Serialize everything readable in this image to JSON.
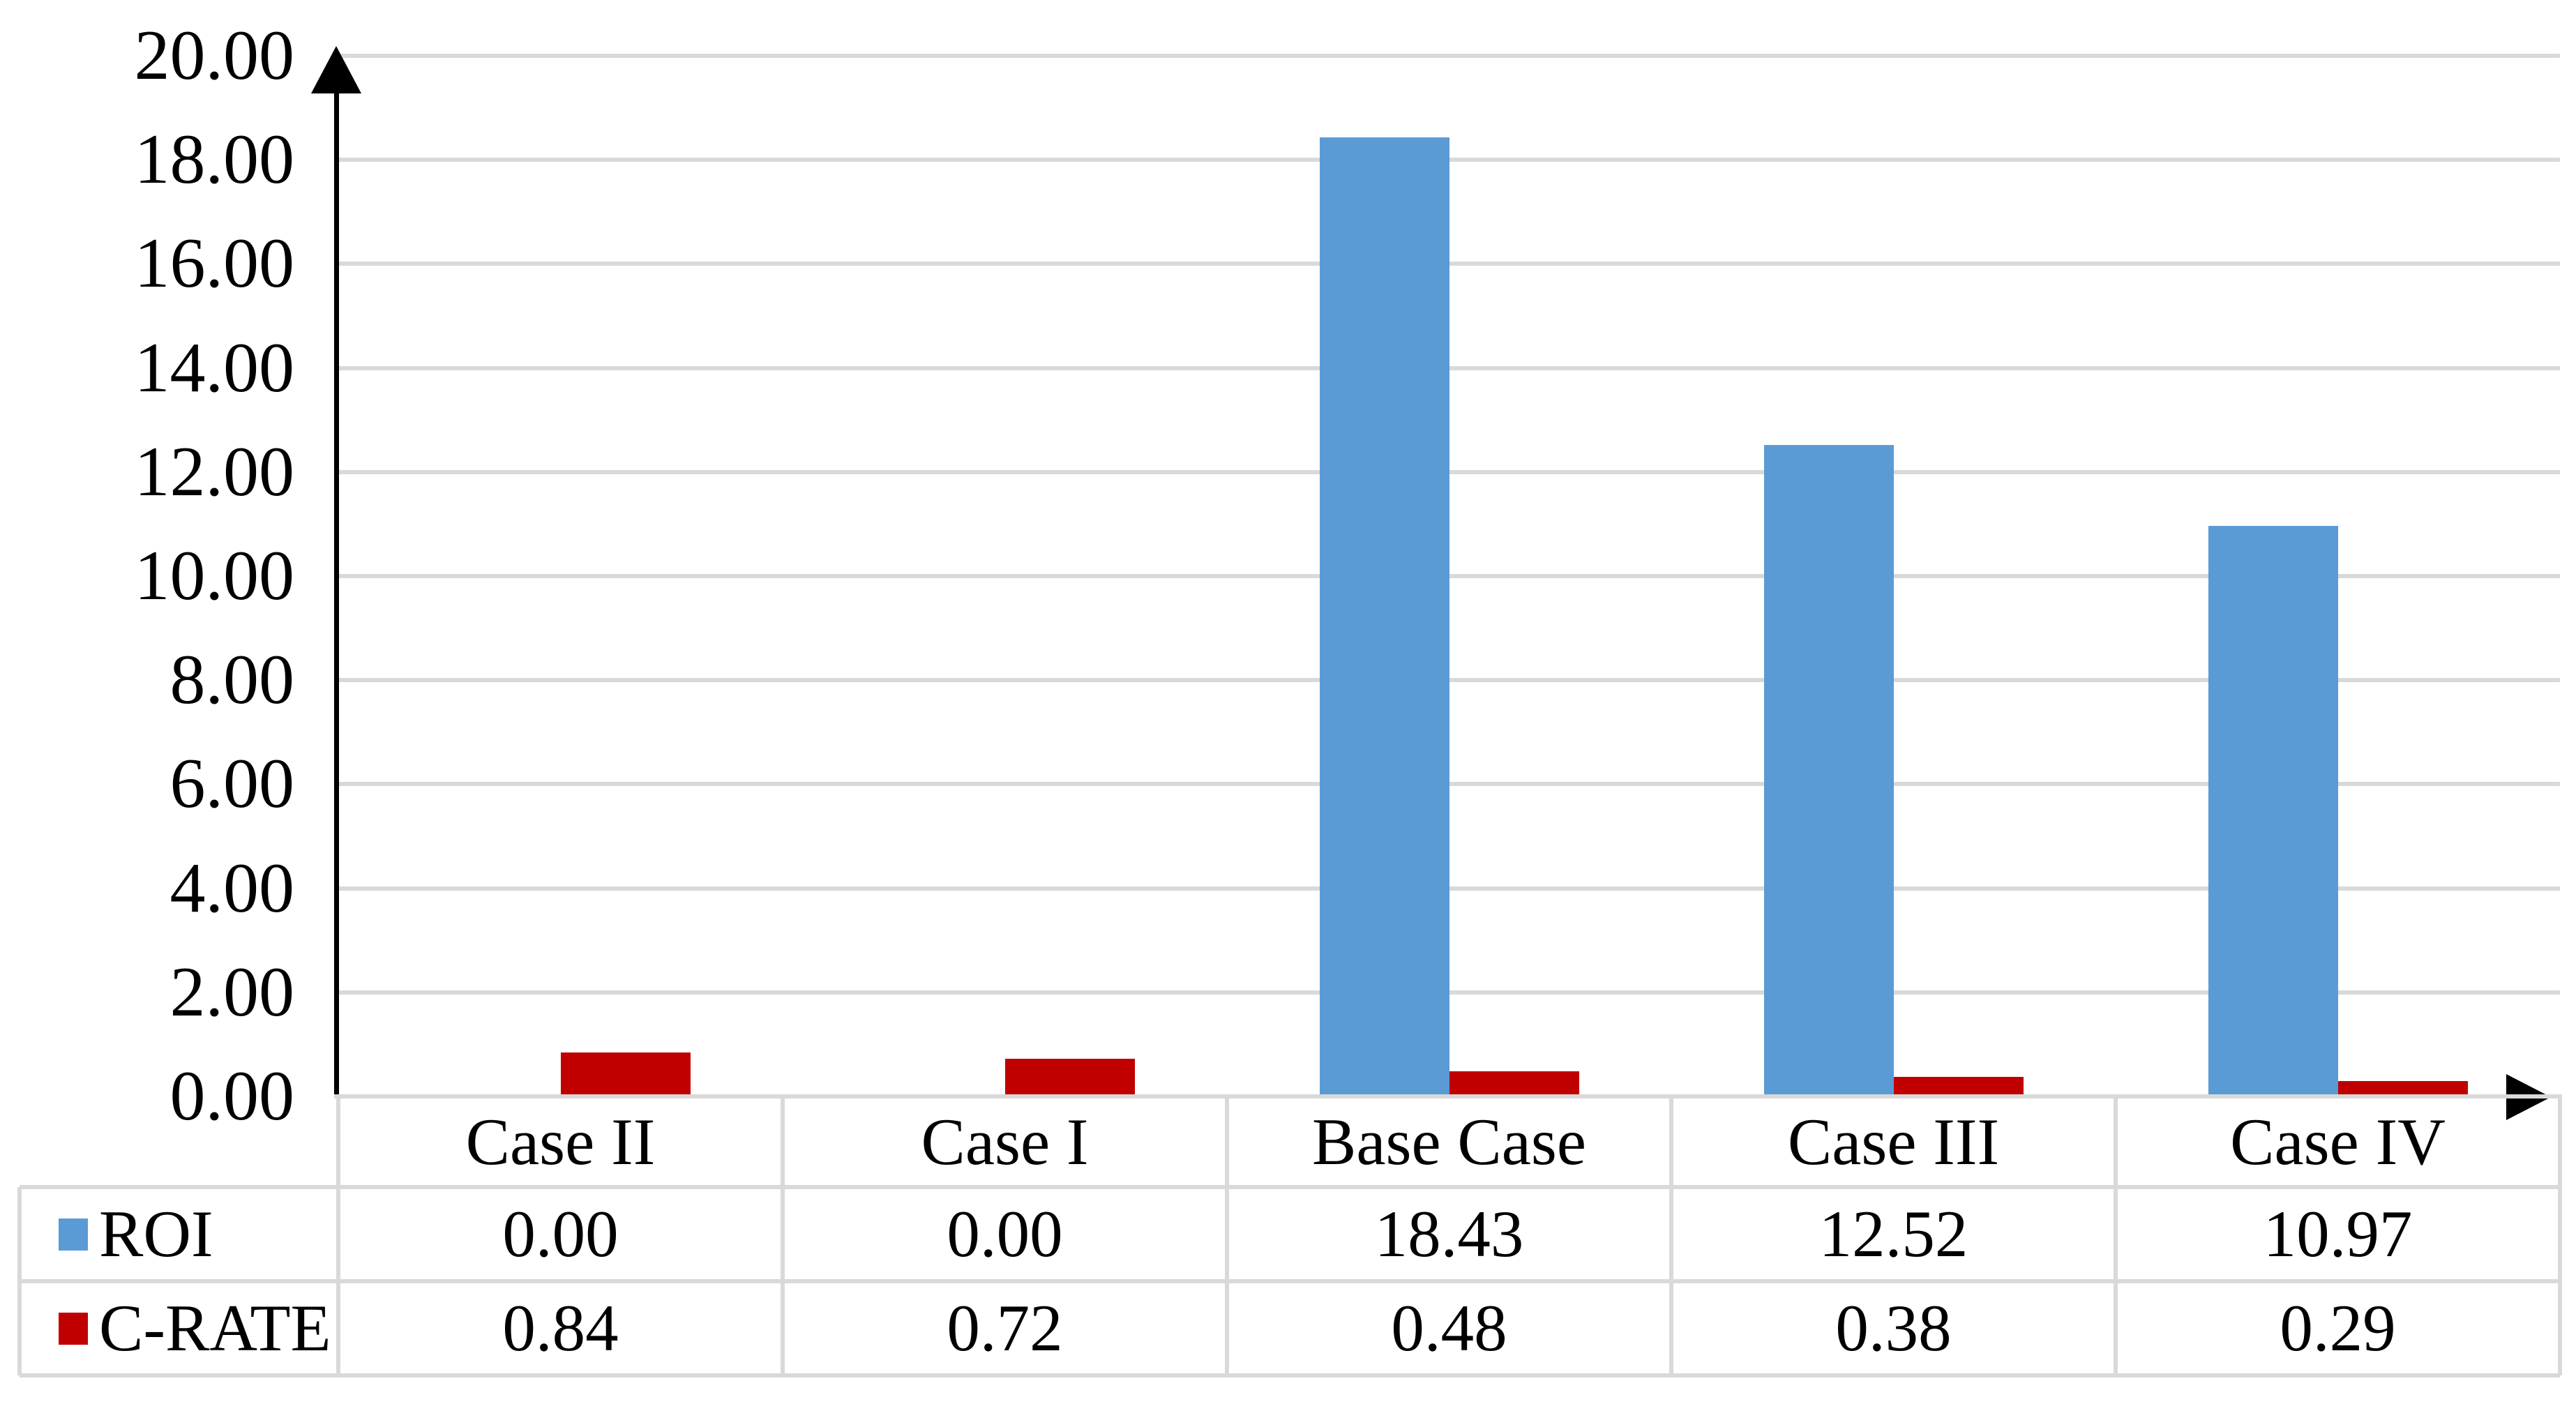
{
  "chart_data": {
    "type": "bar",
    "title": "",
    "xlabel": "",
    "ylabel": "",
    "categories": [
      "Case II",
      "Case I",
      "Base Case",
      "Case III",
      "Case IV"
    ],
    "series": [
      {
        "name": "ROI",
        "color": "#5B9BD5",
        "values": [
          0.0,
          0.0,
          18.43,
          12.52,
          10.97
        ],
        "formatted": [
          "0.00",
          "0.00",
          "18.43",
          "12.52",
          "10.97"
        ]
      },
      {
        "name": "C-RATE",
        "color": "#C00000",
        "values": [
          0.84,
          0.72,
          0.48,
          0.38,
          0.29
        ],
        "formatted": [
          "0.84",
          "0.72",
          "0.48",
          "0.38",
          "0.29"
        ]
      }
    ],
    "ylim": [
      0,
      20
    ],
    "y_tick_step": 2,
    "y_tick_labels": [
      "20.00",
      "18.00",
      "16.00",
      "14.00",
      "12.00",
      "10.00",
      "8.00",
      "6.00",
      "4.00",
      "2.00",
      "0.00"
    ],
    "grid": true,
    "legend_position": "data-table-left-column",
    "data_table_shown": true
  },
  "colors": {
    "background": "#FFFFFF",
    "text": "#000000",
    "axis": "#000000",
    "gridline": "#D9D9D9",
    "table_border": "#D9D9D9",
    "series_roi": "#5B9BD5",
    "series_c_rate": "#C00000"
  }
}
